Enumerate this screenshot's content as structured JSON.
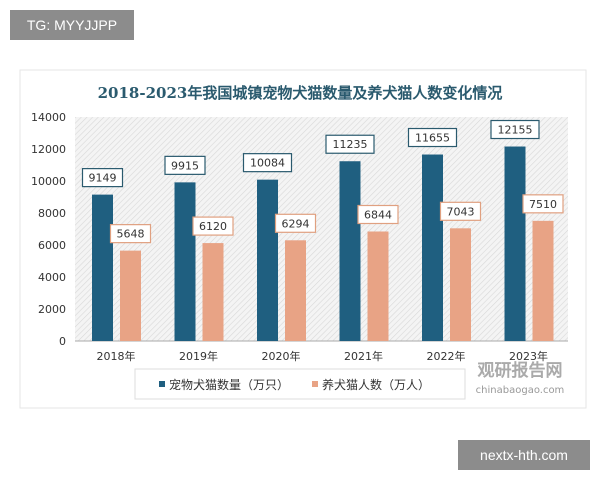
{
  "tags": {
    "top_left": "TG: MYYJJPP",
    "bottom_right": "nextx-hth.com"
  },
  "watermark": {
    "logo": "观研报告网",
    "url": "chinabaogao.com"
  },
  "chart_data": {
    "type": "bar",
    "title": "2018-2023年我国城镇宠物犬猫数量及养犬猫人数变化情况",
    "categories": [
      "2018年",
      "2019年",
      "2020年",
      "2021年",
      "2022年",
      "2023年"
    ],
    "series": [
      {
        "name": "宠物犬猫数量（万只）",
        "values": [
          9149,
          9915,
          10084,
          11235,
          11655,
          12155
        ],
        "color": "#1f5f80"
      },
      {
        "name": "养犬猫人数（万人）",
        "values": [
          5648,
          6120,
          6294,
          6844,
          7043,
          7510
        ],
        "color": "#e8a385"
      }
    ],
    "ylim": [
      0,
      14000
    ],
    "yticks": [
      0,
      2000,
      4000,
      6000,
      8000,
      10000,
      12000,
      14000
    ],
    "legend": "bottom",
    "grid": false
  }
}
